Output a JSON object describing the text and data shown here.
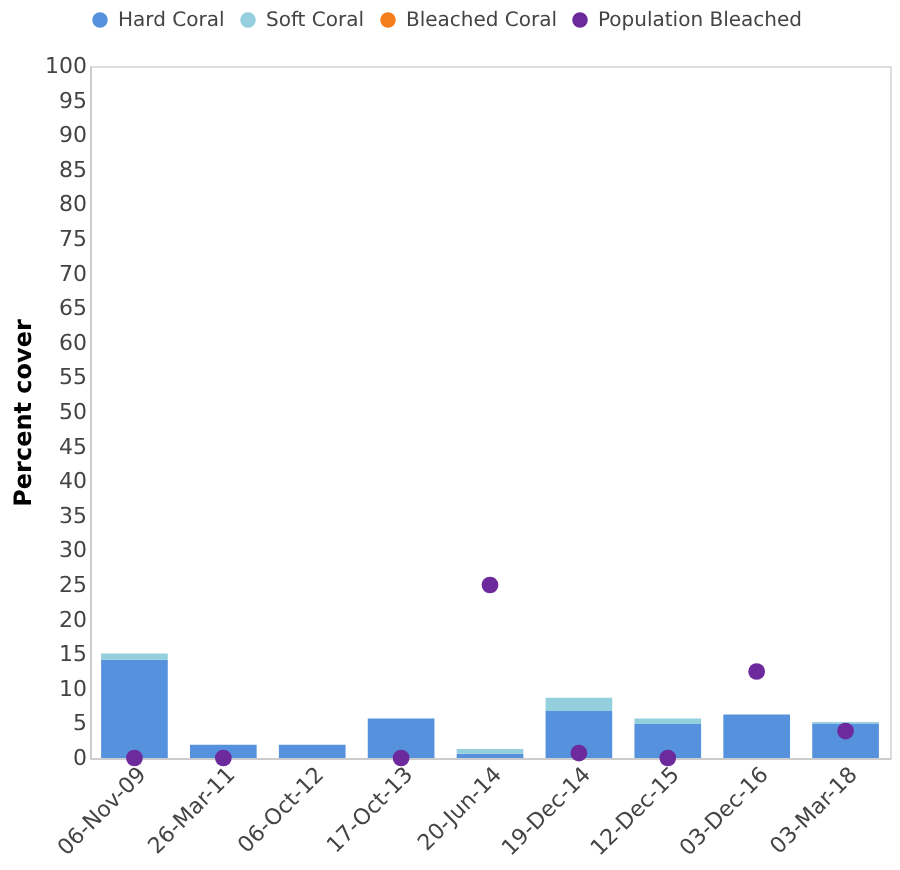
{
  "chart_data": {
    "type": "bar",
    "ylabel": "Percent cover",
    "stacked": true,
    "legend": "top",
    "grid": false,
    "categories": [
      "06-Nov-09",
      "26-Mar-11",
      "06-Oct-12",
      "17-Oct-13",
      "20-Jun-14",
      "19-Dec-14",
      "12-Dec-15",
      "03-Dec-16",
      "03-Mar-18"
    ],
    "ylim": [
      0,
      100
    ],
    "yticks": [
      0,
      5,
      10,
      15,
      20,
      25,
      30,
      35,
      40,
      45,
      50,
      55,
      60,
      65,
      70,
      75,
      80,
      85,
      90,
      95,
      100
    ],
    "series": [
      {
        "name": "Hard Coral",
        "color": "#5591dc",
        "values": [
          14.2,
          1.9,
          1.9,
          5.7,
          0.6,
          6.8,
          4.9,
          6.3,
          5.0
        ]
      },
      {
        "name": "Soft Coral",
        "color": "#93cfdc",
        "values": [
          0.9,
          null,
          null,
          null,
          0.7,
          1.9,
          0.8,
          null,
          0.2
        ]
      },
      {
        "name": "Bleached Coral",
        "color": "#f37e1a",
        "values": [
          null,
          null,
          null,
          null,
          null,
          null,
          null,
          null,
          null
        ]
      },
      {
        "name": "Population Bleached",
        "type": "scatter",
        "color": "#6c2a9c",
        "marker": "circle",
        "values": [
          0,
          0,
          null,
          0,
          25,
          0.7,
          0,
          12.5,
          3.9
        ]
      }
    ]
  }
}
